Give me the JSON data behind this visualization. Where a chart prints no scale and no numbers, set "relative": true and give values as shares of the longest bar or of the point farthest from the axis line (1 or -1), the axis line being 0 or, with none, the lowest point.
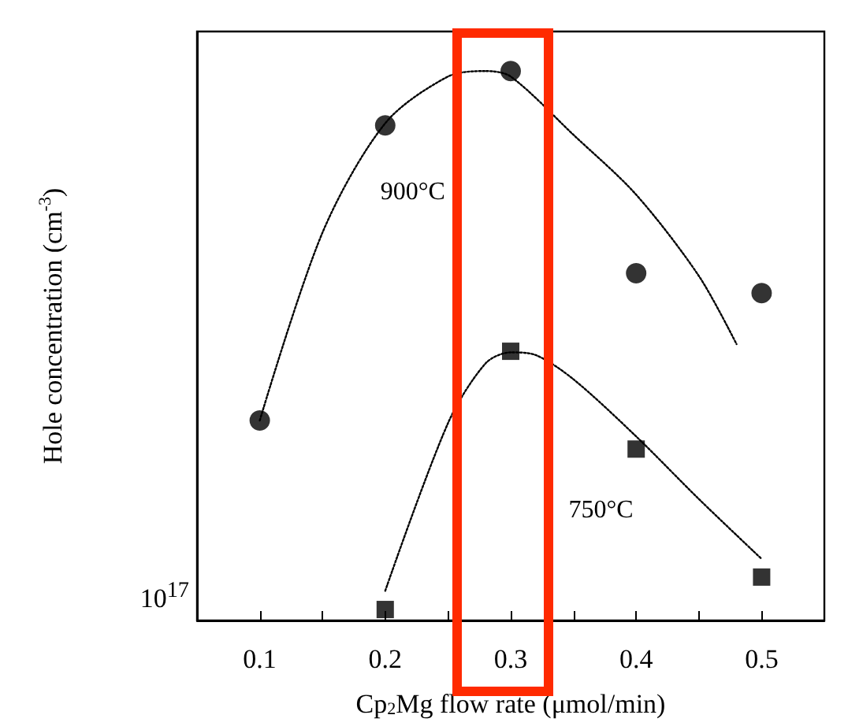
{
  "chart_data": {
    "type": "scatter",
    "relative": true,
    "xlabel": "Cp$_{2}$Mg flow rate (μmol/min)",
    "ylabel": "Hole concentration (cm$^{-3}$)",
    "xlim": [
      0.05,
      0.55
    ],
    "xticks": [
      0.1,
      0.2,
      0.3,
      0.4,
      0.5
    ],
    "annotations": [
      "10$^{17}$"
    ],
    "series": [
      {
        "name": "900°C",
        "color": "#000000",
        "marker": "circle",
        "x": [
          0.1,
          0.2,
          0.3,
          0.4,
          0.5
        ],
        "values": [
          0.364,
          0.901,
          1,
          0.632,
          0.596
        ]
      },
      {
        "name": "750°C",
        "color": "#000000",
        "marker": "square",
        "x": [
          0.2,
          0.3,
          0.4,
          0.5
        ],
        "values": [
          0.02,
          0.49,
          0.312,
          0.079
        ]
      },
      {
        "type": "line",
        "color": "#000000",
        "marker": "none",
        "line_style": "dotted",
        "x": [
          0.1,
          0.15,
          0.2,
          0.25,
          0.28,
          0.3,
          0.35,
          0.4,
          0.45,
          0.48
        ],
        "values": [
          0.364,
          0.706,
          0.905,
          0.99,
          1,
          0.99,
          0.884,
          0.775,
          0.627,
          0.503
        ]
      },
      {
        "type": "line",
        "color": "#000000",
        "marker": "none",
        "line_style": "dotted",
        "x": [
          0.2,
          0.25,
          0.28,
          0.3,
          0.32,
          0.35,
          0.4,
          0.45,
          0.5
        ],
        "values": [
          0.054,
          0.359,
          0.468,
          0.488,
          0.483,
          0.439,
          0.335,
          0.221,
          0.112
        ]
      }
    ]
  }
}
